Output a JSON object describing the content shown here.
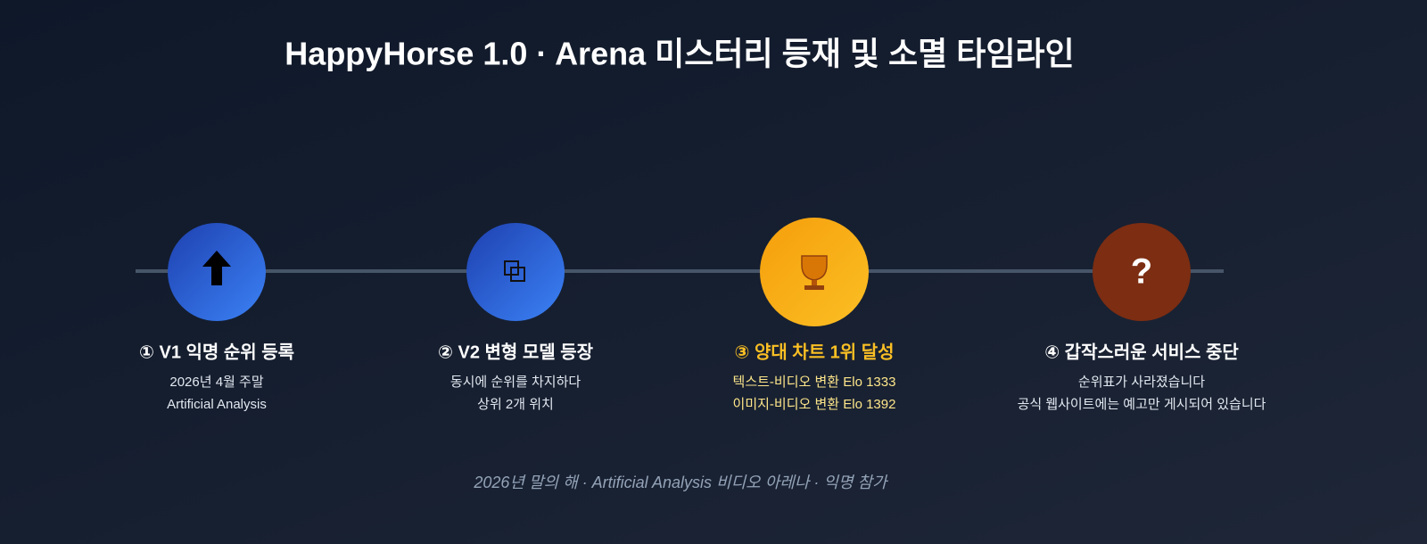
{
  "title": "HappyHorse 1.0 · Arena 미스터리 등재 및 소멸 타임라인",
  "nodes": [
    {
      "label": "① V1 익명 순위 등록",
      "lines": [
        "2026년 4월 주말",
        "Artificial Analysis"
      ]
    },
    {
      "label": "② V2 변형 모델 등장",
      "lines": [
        "동시에 순위를 차지하다",
        "상위 2개 위치"
      ]
    },
    {
      "label": "③ 양대 차트 1위 달성",
      "lines": [
        "텍스트-비디오 변환 Elo 1333",
        "이미지-비디오 변환 Elo 1392"
      ]
    },
    {
      "label": "④ 갑작스러운 서비스 중단",
      "lines": [
        "순위표가 사라졌습니다",
        "공식 웹사이트에는 예고만 게시되어 있습니다"
      ],
      "symbol": "?"
    }
  ],
  "footer": "2026년 말의 해 · Artificial Analysis 비디오 아레나 · 익명 참가"
}
